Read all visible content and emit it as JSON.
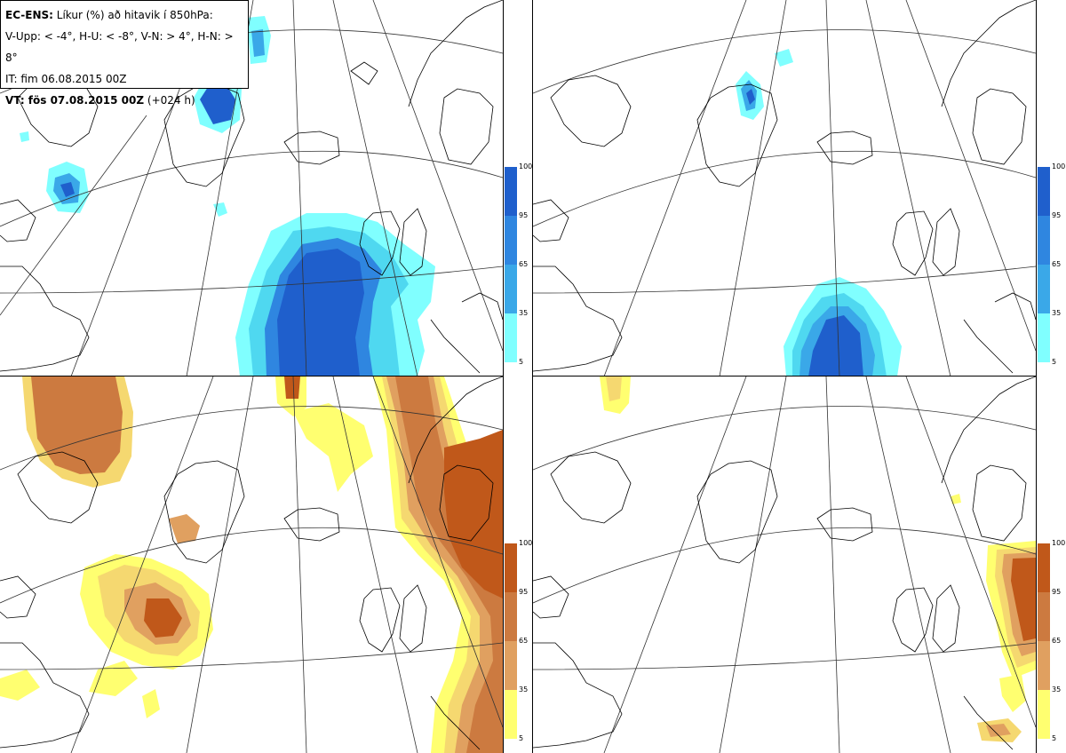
{
  "info": {
    "title_bold": "EC-ENS:",
    "title_rest": "Líkur (%) að hitavik í 850hPa:",
    "thresholds": "V-Upp: < -4°, H-U: < -8°, V-N: > 4°, H-N: > 8°",
    "init_time": "IT: fim 06.08.2015 00Z",
    "valid_bold": "VT: fös 07.08.2015 00Z",
    "valid_rest": "(+024 h)"
  },
  "colorbar_labels": [
    "100",
    "95",
    "65",
    "35",
    "5"
  ],
  "palettes": {
    "cold": [
      "#80ffff",
      "#4fd8f0",
      "#3aa8e8",
      "#2f86e0",
      "#1f5fcc"
    ],
    "warm": [
      "#ffff70",
      "#f5d870",
      "#e0a060",
      "#cc7a40",
      "#c0581a"
    ]
  },
  "map_colors": {
    "coast": "#000000",
    "graticule": "#333333"
  }
}
